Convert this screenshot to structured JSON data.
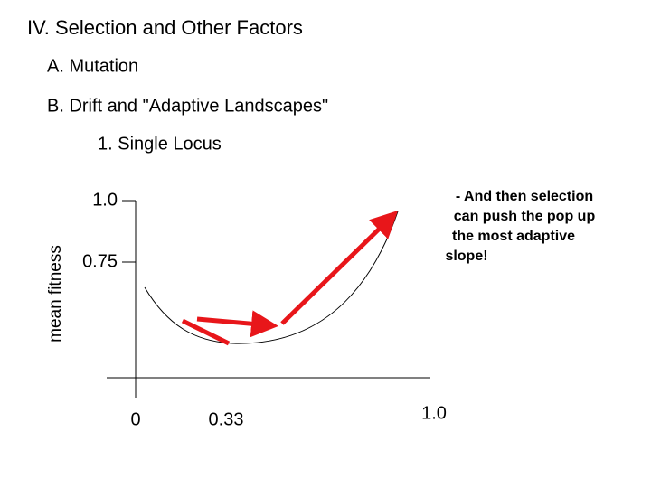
{
  "title": "IV. Selection and Other Factors",
  "outline": [
    "A. Mutation",
    "B. Drift and \"Adaptive Landscapes\"",
    "1. Single Locus"
  ],
  "figure": {
    "y_axis_label": "mean fitness",
    "y_tick_labels": [
      "1.0",
      "0.75"
    ],
    "x_tick_labels": [
      "0",
      "0.33",
      "1.0"
    ],
    "annotation": [
      "- And then selection",
      "can push the pop up",
      "the most adaptive",
      "slope!"
    ]
  }
}
